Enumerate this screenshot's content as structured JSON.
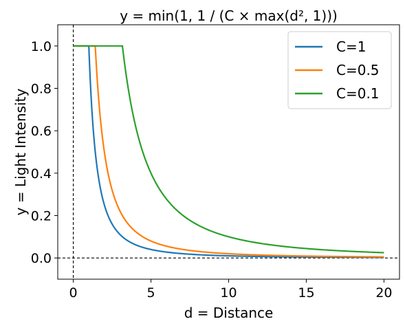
{
  "chart_data": {
    "type": "line",
    "title": "y = min(1, 1 / (C × max(d², 1)))",
    "xlabel": "d = Distance",
    "ylabel": "y = Light Intensity",
    "xlim": [
      -1,
      21
    ],
    "ylim": [
      -0.1,
      1.1
    ],
    "x_ticks": [
      0,
      5,
      10,
      15,
      20
    ],
    "x_tick_labels": [
      "0",
      "5",
      "10",
      "15",
      "20"
    ],
    "y_ticks": [
      0.0,
      0.2,
      0.4,
      0.6,
      0.8,
      1.0
    ],
    "y_tick_labels": [
      "0.0",
      "0.2",
      "0.4",
      "0.6",
      "0.8",
      "1.0"
    ],
    "grid": false,
    "legend_position": "top-right",
    "reference_lines": [
      {
        "orientation": "horizontal",
        "value": 0,
        "style": "dashed"
      },
      {
        "orientation": "vertical",
        "value": 0,
        "style": "dashed"
      }
    ],
    "x": [
      0,
      1,
      1.41,
      2,
      2.5,
      3,
      3.16,
      4,
      5,
      6,
      7,
      8,
      10,
      12,
      15,
      18,
      20
    ],
    "series": [
      {
        "name": "C=1",
        "color": "#1f77b4",
        "values": [
          1.0,
          1.0,
          0.503,
          0.25,
          0.16,
          0.111,
          0.1,
          0.0625,
          0.04,
          0.0278,
          0.0204,
          0.0156,
          0.01,
          0.0069,
          0.0044,
          0.0031,
          0.0025
        ]
      },
      {
        "name": "C=0.5",
        "color": "#ff7f0e",
        "values": [
          1.0,
          1.0,
          1.0,
          0.5,
          0.32,
          0.222,
          0.2,
          0.125,
          0.08,
          0.0556,
          0.0408,
          0.0313,
          0.02,
          0.0139,
          0.0089,
          0.0062,
          0.005
        ]
      },
      {
        "name": "C=0.1",
        "color": "#2ca02c",
        "values": [
          1.0,
          1.0,
          1.0,
          1.0,
          1.0,
          1.0,
          1.0,
          0.625,
          0.4,
          0.278,
          0.204,
          0.156,
          0.1,
          0.0694,
          0.0444,
          0.0309,
          0.025
        ]
      }
    ]
  }
}
